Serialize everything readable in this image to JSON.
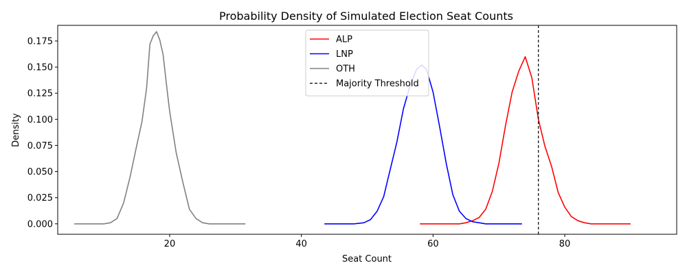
{
  "chart_data": {
    "type": "line",
    "title": "Probability Density of Simulated Election Seat Counts",
    "xlabel": "Seat Count",
    "ylabel": "Density",
    "xlim": [
      3,
      97
    ],
    "ylim": [
      -0.01,
      0.19
    ],
    "xticks": [
      20,
      40,
      60,
      80
    ],
    "yticks": [
      0.0,
      0.025,
      0.05,
      0.075,
      0.1,
      0.125,
      0.15,
      0.175
    ],
    "ytick_labels": [
      "0.000",
      "0.025",
      "0.050",
      "0.075",
      "0.100",
      "0.125",
      "0.150",
      "0.175"
    ],
    "grid": false,
    "legend_position": "top-center",
    "series": [
      {
        "name": "ALP",
        "color": "#ff0000",
        "x": [
          58,
          62,
          64,
          65,
          66,
          67,
          68,
          69,
          70,
          71,
          72,
          73,
          74,
          75,
          76,
          77,
          78,
          79,
          80,
          81,
          82,
          83,
          84,
          86,
          88,
          90
        ],
        "y": [
          0.0,
          0.0,
          0.0,
          0.001,
          0.003,
          0.006,
          0.014,
          0.031,
          0.058,
          0.094,
          0.126,
          0.146,
          0.16,
          0.14,
          0.1,
          0.074,
          0.055,
          0.03,
          0.016,
          0.007,
          0.003,
          0.001,
          0.0,
          0.0,
          0.0,
          0.0
        ]
      },
      {
        "name": "LNP",
        "color": "#0000ff",
        "x": [
          43.5,
          48,
          49.5,
          50.5,
          51.5,
          52.5,
          53.5,
          54.5,
          55.5,
          56.5,
          57.5,
          58.3,
          59,
          60,
          61,
          62,
          63,
          64,
          65,
          66,
          67,
          68,
          70,
          73.5
        ],
        "y": [
          0.0,
          0.0,
          0.001,
          0.004,
          0.012,
          0.026,
          0.052,
          0.078,
          0.11,
          0.132,
          0.148,
          0.152,
          0.148,
          0.126,
          0.093,
          0.058,
          0.028,
          0.012,
          0.005,
          0.002,
          0.001,
          0.0,
          0.0,
          0.0
        ]
      },
      {
        "name": "OTH",
        "color": "#808080",
        "x": [
          5.5,
          10,
          11,
          12,
          13,
          14,
          15,
          15.8,
          16.5,
          17,
          17.5,
          18,
          18.5,
          19,
          19.5,
          20,
          21,
          22,
          23,
          24,
          25,
          26,
          28,
          31.5
        ],
        "y": [
          0.0,
          0.0,
          0.001,
          0.005,
          0.02,
          0.045,
          0.075,
          0.098,
          0.13,
          0.172,
          0.18,
          0.184,
          0.176,
          0.162,
          0.134,
          0.108,
          0.068,
          0.04,
          0.014,
          0.005,
          0.001,
          0.0,
          0.0,
          0.0
        ]
      }
    ],
    "reference_lines": [
      {
        "name": "Majority Threshold",
        "orientation": "vertical",
        "x": 76,
        "color": "#000000",
        "style": "dashed"
      }
    ]
  }
}
